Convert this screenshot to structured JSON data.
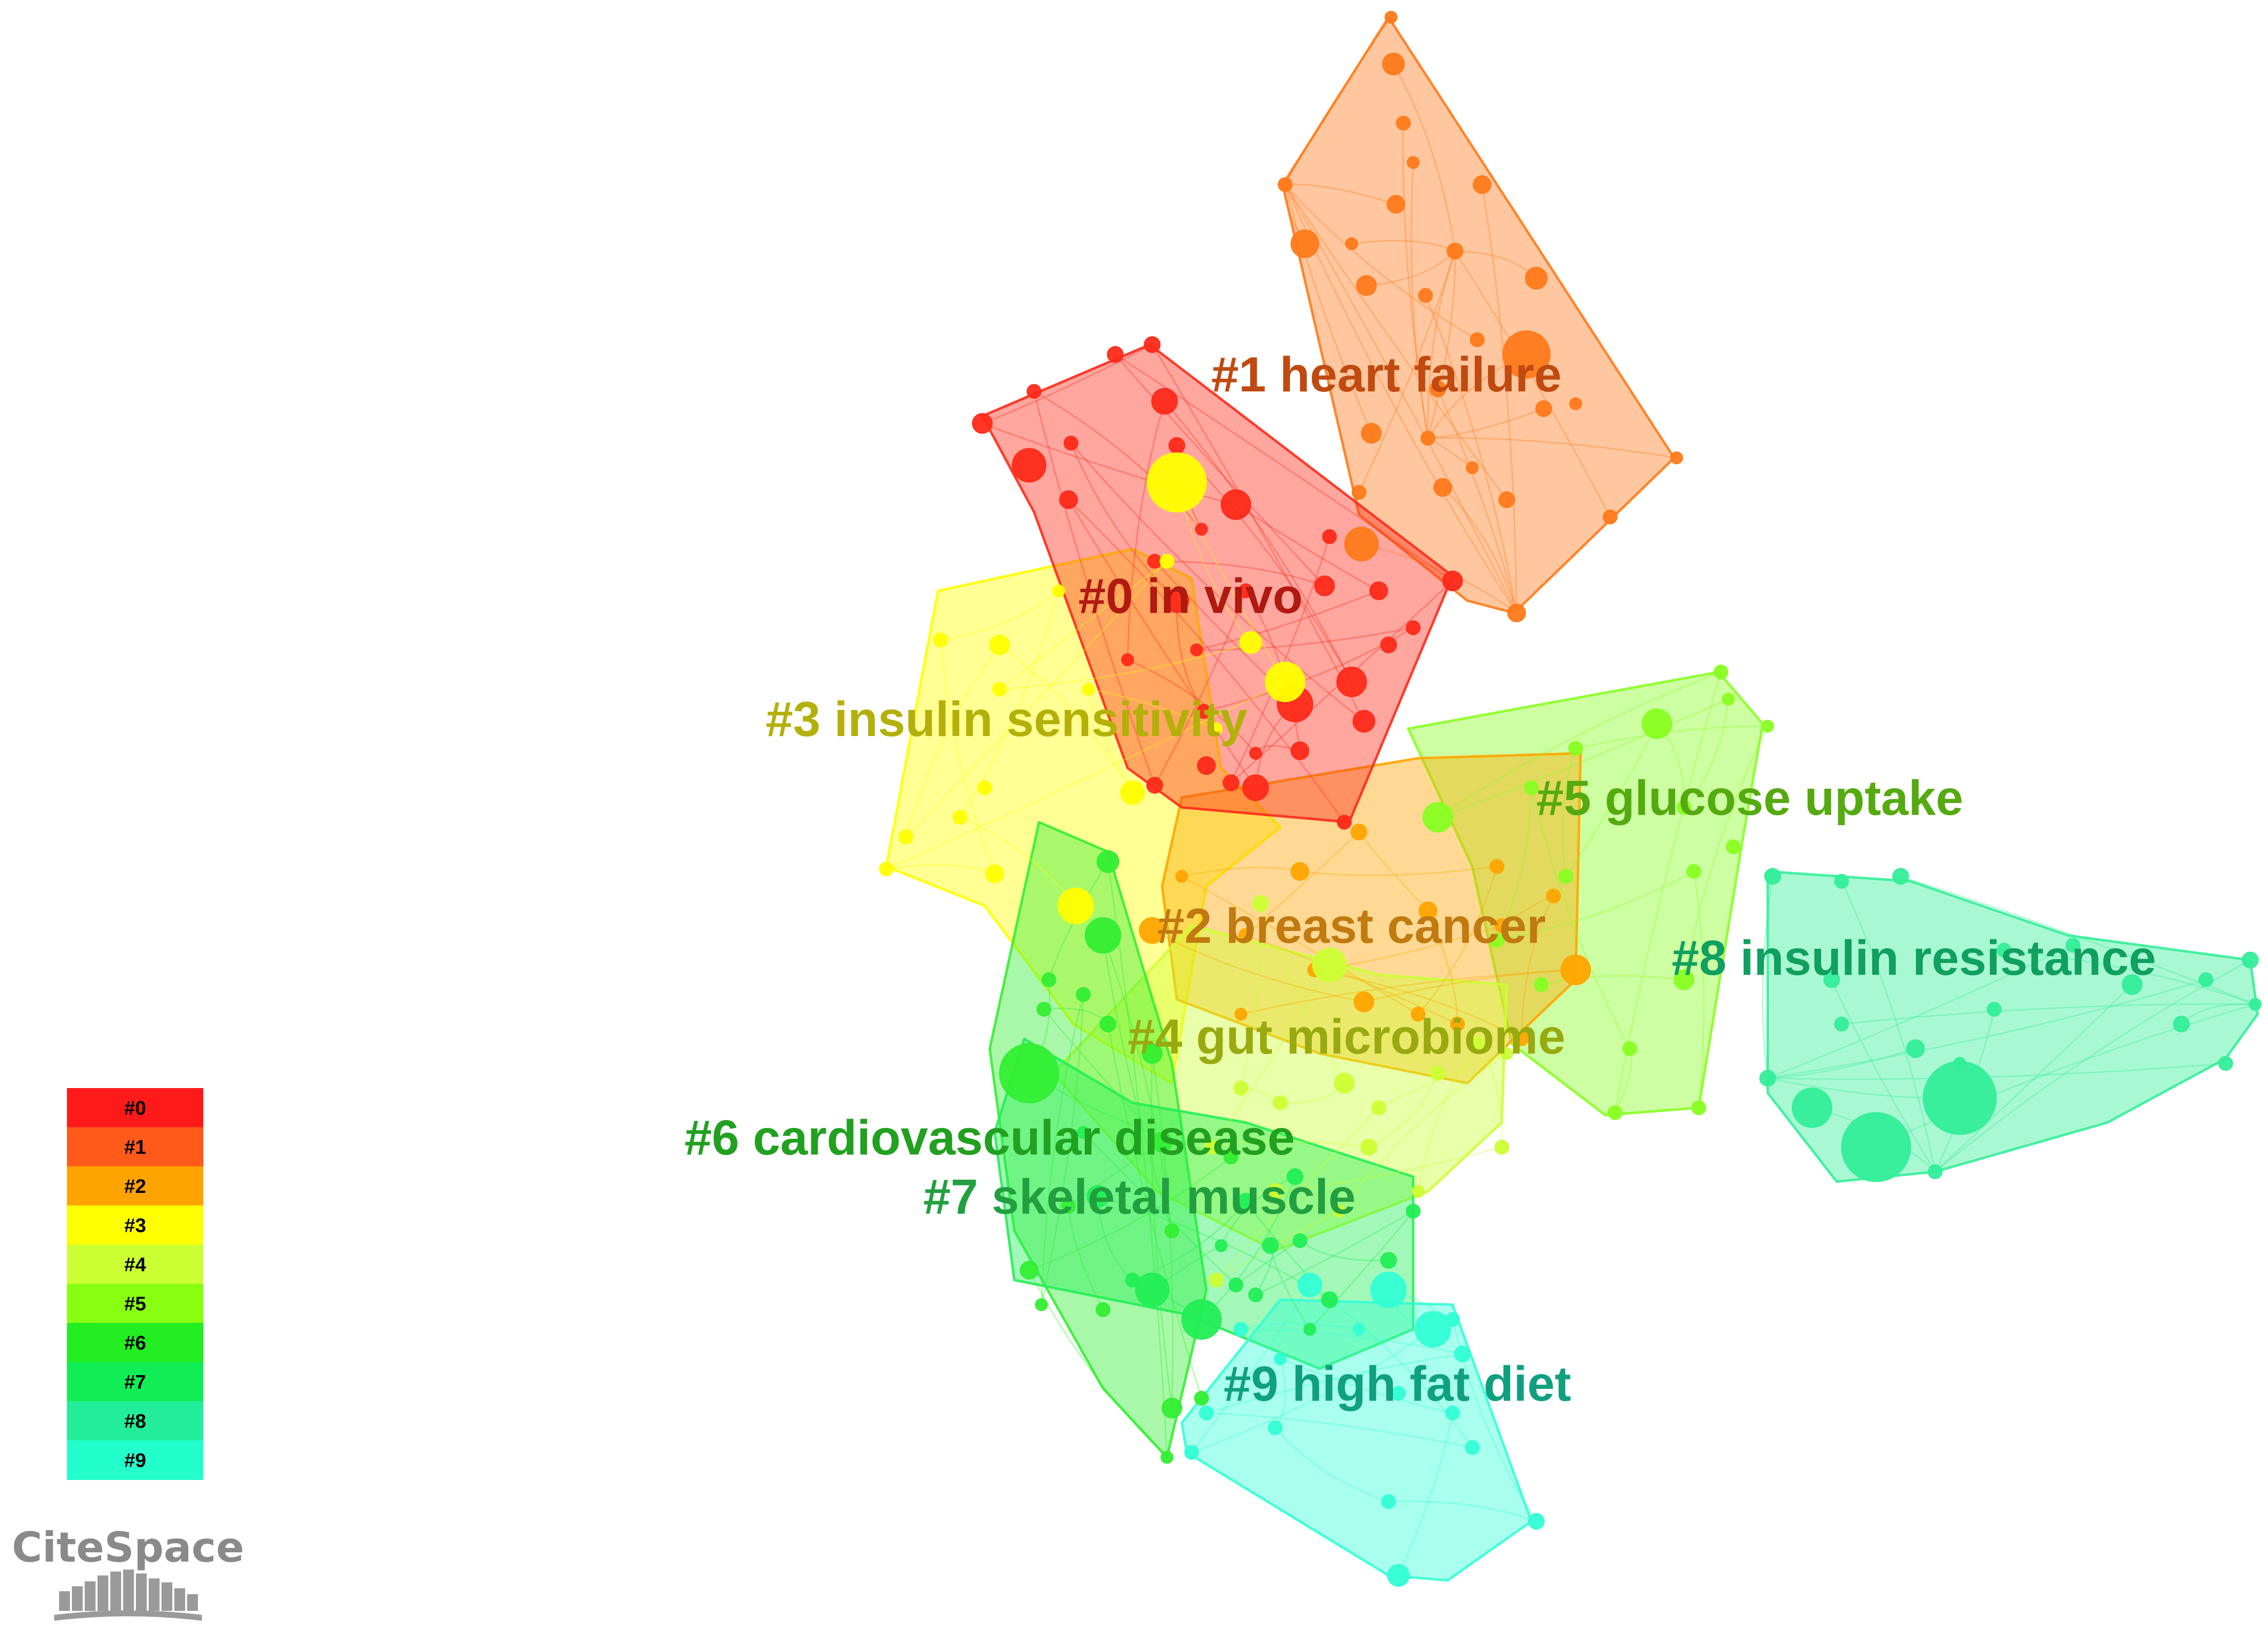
{
  "app": {
    "logo_text": "CiteSpace"
  },
  "clusters": [
    {
      "id": "#0",
      "label": "#0 in vivo",
      "color": "#ff2a1a",
      "label_color": "#b01a10"
    },
    {
      "id": "#1",
      "label": "#1 heart failure",
      "color": "#ff7a1a",
      "label_color": "#c04a10"
    },
    {
      "id": "#2",
      "label": "#2 breast cancer",
      "color": "#ffa500",
      "label_color": "#c07a10"
    },
    {
      "id": "#3",
      "label": "#3 insulin sensitivity",
      "color": "#ffff00",
      "label_color": "#b4b00a"
    },
    {
      "id": "#4",
      "label": "#4 gut microbiome",
      "color": "#ccff33",
      "label_color": "#99aa10"
    },
    {
      "id": "#5",
      "label": "#5 glucose uptake",
      "color": "#88ff22",
      "label_color": "#55aa10"
    },
    {
      "id": "#6",
      "label": "#6 cardiovascular disease",
      "color": "#33ee33",
      "label_color": "#22a020"
    },
    {
      "id": "#7",
      "label": "#7 skeletal muscle",
      "color": "#22ee55",
      "label_color": "#22a040"
    },
    {
      "id": "#8",
      "label": "#8 insulin resistance",
      "color": "#33ee99",
      "label_color": "#10a060"
    },
    {
      "id": "#9",
      "label": "#9 high fat diet",
      "color": "#33ffd5",
      "label_color": "#10a080"
    }
  ],
  "legend": {
    "entries": [
      {
        "label": "#0",
        "color": "#ff1a1a"
      },
      {
        "label": "#1",
        "color": "#ff5a1a"
      },
      {
        "label": "#2",
        "color": "#ffa300"
      },
      {
        "label": "#3",
        "color": "#ffff00"
      },
      {
        "label": "#4",
        "color": "#ccff33"
      },
      {
        "label": "#5",
        "color": "#88ff11"
      },
      {
        "label": "#6",
        "color": "#22ee22"
      },
      {
        "label": "#7",
        "color": "#11ee55"
      },
      {
        "label": "#8",
        "color": "#22ee99"
      },
      {
        "label": "#9",
        "color": "#22ffcc"
      }
    ]
  }
}
